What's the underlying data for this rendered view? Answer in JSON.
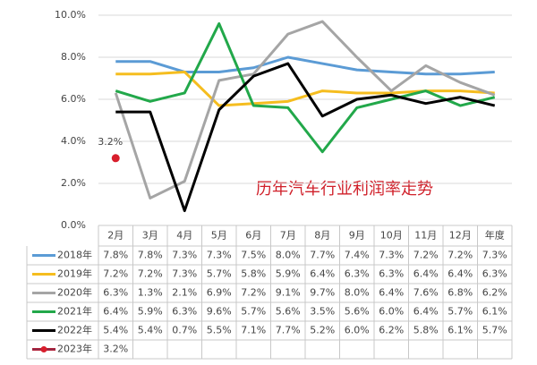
{
  "chart_data": {
    "type": "line",
    "title": "历年汽车行业利润率走势",
    "categories": [
      "2月",
      "3月",
      "4月",
      "5月",
      "6月",
      "7月",
      "8月",
      "9月",
      "10月",
      "11月",
      "12月",
      "年度"
    ],
    "ylim": [
      0,
      10
    ],
    "yticks": [
      {
        "value": 0,
        "label": "0.0%"
      },
      {
        "value": 2,
        "label": "2.0%"
      },
      {
        "value": 4,
        "label": "4.0%"
      },
      {
        "value": 6,
        "label": "6.0%"
      },
      {
        "value": 8,
        "label": "8.0%"
      },
      {
        "value": 10,
        "label": "10.0%"
      }
    ],
    "grid": true,
    "series": [
      {
        "name": "2018年",
        "color": "#5b9bd5",
        "values": [
          7.8,
          7.8,
          7.3,
          7.3,
          7.5,
          8.0,
          7.7,
          7.4,
          7.3,
          7.2,
          7.2,
          7.3
        ],
        "value_labels": [
          "7.8%",
          "7.8%",
          "7.3%",
          "7.3%",
          "7.5%",
          "8.0%",
          "7.7%",
          "7.4%",
          "7.3%",
          "7.2%",
          "7.2%",
          "7.3%"
        ]
      },
      {
        "name": "2019年",
        "color": "#f5bd1f",
        "values": [
          7.2,
          7.2,
          7.3,
          5.7,
          5.8,
          5.9,
          6.4,
          6.3,
          6.3,
          6.4,
          6.4,
          6.3
        ],
        "value_labels": [
          "7.2%",
          "7.2%",
          "7.3%",
          "5.7%",
          "5.8%",
          "5.9%",
          "6.4%",
          "6.3%",
          "6.3%",
          "6.4%",
          "6.4%",
          "6.3%"
        ]
      },
      {
        "name": "2020年",
        "color": "#a5a5a5",
        "values": [
          6.3,
          1.3,
          2.1,
          6.9,
          7.2,
          9.1,
          9.7,
          8.0,
          6.4,
          7.6,
          6.8,
          6.2
        ],
        "value_labels": [
          "6.3%",
          "1.3%",
          "2.1%",
          "6.9%",
          "7.2%",
          "9.1%",
          "9.7%",
          "8.0%",
          "6.4%",
          "7.6%",
          "6.8%",
          "6.2%"
        ]
      },
      {
        "name": "2021年",
        "color": "#22a84a",
        "values": [
          6.4,
          5.9,
          6.3,
          9.6,
          5.7,
          5.6,
          3.5,
          5.6,
          6.0,
          6.4,
          5.7,
          6.1
        ],
        "value_labels": [
          "6.4%",
          "5.9%",
          "6.3%",
          "9.6%",
          "5.7%",
          "5.6%",
          "3.5%",
          "5.6%",
          "6.0%",
          "6.4%",
          "5.7%",
          "6.1%"
        ]
      },
      {
        "name": "2022年",
        "color": "#000000",
        "values": [
          5.4,
          5.4,
          0.7,
          5.5,
          7.1,
          7.7,
          5.2,
          6.0,
          6.2,
          5.8,
          6.1,
          5.7
        ],
        "value_labels": [
          "5.4%",
          "5.4%",
          "0.7%",
          "5.5%",
          "7.1%",
          "7.7%",
          "5.2%",
          "6.0%",
          "6.2%",
          "5.8%",
          "6.1%",
          "5.7%"
        ]
      },
      {
        "name": "2023年",
        "color": "#d81e2c",
        "values": [
          3.2,
          null,
          null,
          null,
          null,
          null,
          null,
          null,
          null,
          null,
          null,
          null
        ],
        "value_labels": [
          "3.2%",
          null,
          null,
          null,
          null,
          null,
          null,
          null,
          null,
          null,
          null,
          null
        ]
      }
    ]
  }
}
